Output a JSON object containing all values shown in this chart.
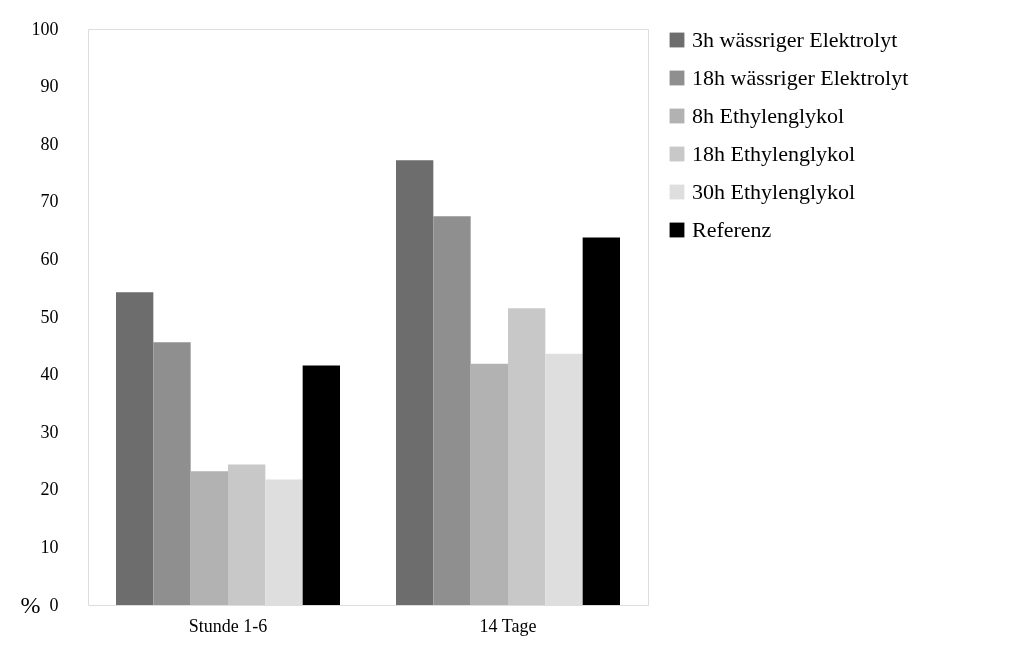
{
  "chart_data": {
    "type": "bar",
    "ylabel": "%",
    "categories": [
      "Stunde 1-6",
      "14 Tage"
    ],
    "series": [
      {
        "name": "3h wässriger Elektrolyt",
        "color": "#6d6d6d",
        "values": [
          54.3,
          77.2
        ]
      },
      {
        "name": "18h wässriger Elektrolyt",
        "color": "#8f8f8f",
        "values": [
          45.6,
          67.5
        ]
      },
      {
        "name": "8h Ethylenglykol",
        "color": "#b2b2b2",
        "values": [
          23.2,
          41.9
        ]
      },
      {
        "name": "18h Ethylenglykol",
        "color": "#c8c8c8",
        "values": [
          24.4,
          51.5
        ]
      },
      {
        "name": "30h Ethylenglykol",
        "color": "#dedede",
        "values": [
          21.8,
          43.6
        ]
      },
      {
        "name": "Referenz",
        "color": "#000000",
        "values": [
          41.6,
          63.8
        ]
      }
    ],
    "ylim": [
      0,
      100
    ],
    "yticks": [
      0,
      10,
      20,
      30,
      40,
      50,
      60,
      70,
      80,
      90,
      100
    ],
    "grid": false,
    "legend": "right"
  }
}
